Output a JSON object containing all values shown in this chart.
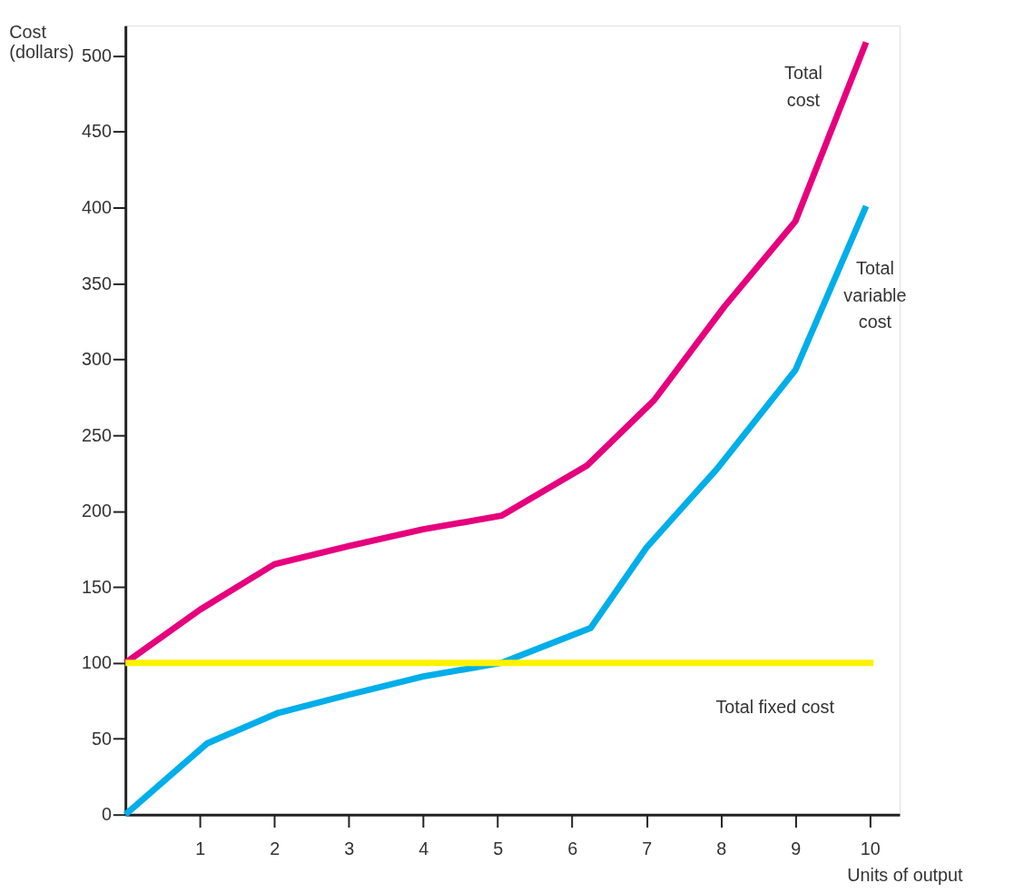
{
  "chart_data": {
    "type": "line",
    "xlabel": "Units of output",
    "ylabel": "Cost (dollars)",
    "xlim": [
      0,
      10.4
    ],
    "ylim": [
      0,
      520
    ],
    "xticks": [
      1,
      2,
      3,
      4,
      5,
      6,
      7,
      8,
      9,
      10
    ],
    "yticks": [
      0,
      50,
      100,
      150,
      200,
      250,
      300,
      350,
      400,
      450,
      500
    ],
    "grid": false,
    "marker": "none",
    "line_style": "solid",
    "series": [
      {
        "name": "Total cost",
        "color": "#e6007e",
        "x": [
          0,
          1,
          2,
          3,
          4,
          5.05,
          6.2,
          7.1,
          8.05,
          9,
          9.95
        ],
        "values": [
          100,
          135,
          165,
          177,
          188,
          197,
          230,
          273,
          335,
          391,
          509
        ]
      },
      {
        "name": "Total variable cost",
        "color": "#00aeea",
        "x": [
          0,
          1.1,
          2.05,
          3,
          4,
          5.05,
          6.25,
          7,
          7.95,
          9,
          9.95
        ],
        "values": [
          0,
          47,
          67,
          79,
          91,
          100,
          123,
          176,
          228,
          293,
          401
        ]
      },
      {
        "name": "Total fixed cost",
        "color": "#fff200",
        "x": [
          0,
          10.05
        ],
        "values": [
          100,
          100
        ]
      }
    ]
  }
}
